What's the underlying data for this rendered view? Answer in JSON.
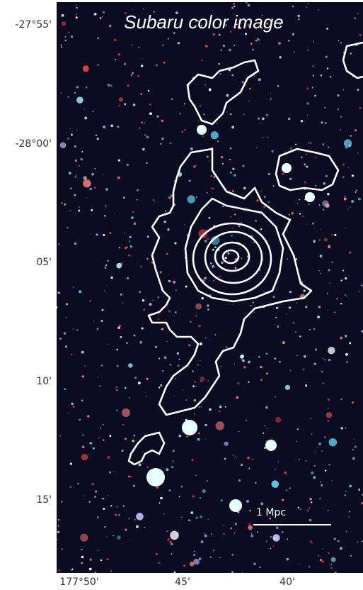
{
  "image": {
    "title": "Subaru color image",
    "scale_bar": "1 Mpc"
  },
  "axes": {
    "y_ticks": [
      "-27°55'",
      "-28°00'",
      "05'",
      "10'",
      "15'"
    ],
    "x_ticks": [
      "177°50'",
      "45'",
      "40'"
    ]
  }
}
